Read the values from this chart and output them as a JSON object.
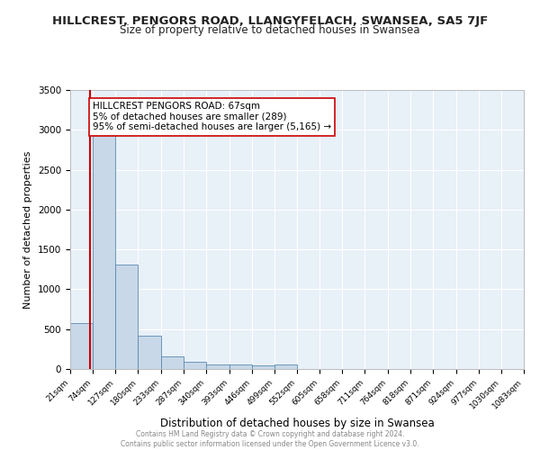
{
  "title": "HILLCREST, PENGORS ROAD, LLANGYFELACH, SWANSEA, SA5 7JF",
  "subtitle": "Size of property relative to detached houses in Swansea",
  "xlabel": "Distribution of detached houses by size in Swansea",
  "ylabel": "Number of detached properties",
  "bar_edges": [
    21,
    74,
    127,
    180,
    233,
    287,
    340,
    393,
    446,
    499,
    552,
    605,
    658,
    711,
    764,
    818,
    871,
    924,
    977,
    1030,
    1083
  ],
  "bar_heights": [
    580,
    2950,
    1310,
    420,
    160,
    85,
    60,
    55,
    50,
    55,
    5,
    3,
    2,
    2,
    1,
    1,
    1,
    1,
    1,
    1
  ],
  "bar_color": "#c8d8e8",
  "bar_edge_color": "#5a8ab0",
  "property_line_x": 67,
  "property_line_color": "#cc0000",
  "annotation_line1": "HILLCREST PENGORS ROAD: 67sqm",
  "annotation_line2": "5% of detached houses are smaller (289)",
  "annotation_line3": "95% of semi-detached houses are larger (5,165) →",
  "annotation_box_color": "#ffffff",
  "annotation_box_edge_color": "#cc0000",
  "ylim": [
    0,
    3500
  ],
  "yticks": [
    0,
    500,
    1000,
    1500,
    2000,
    2500,
    3000,
    3500
  ],
  "background_color": "#e8f0f8",
  "grid_color": "#ffffff",
  "footer_text": "Contains HM Land Registry data © Crown copyright and database right 2024.\nContains public sector information licensed under the Open Government Licence v3.0.",
  "title_fontsize": 9.5,
  "subtitle_fontsize": 8.5,
  "xlabel_fontsize": 8.5,
  "ylabel_fontsize": 8.0,
  "annotation_fontsize": 7.5,
  "tick_fontsize": 6.5,
  "ytick_fontsize": 7.5,
  "footer_fontsize": 5.5
}
